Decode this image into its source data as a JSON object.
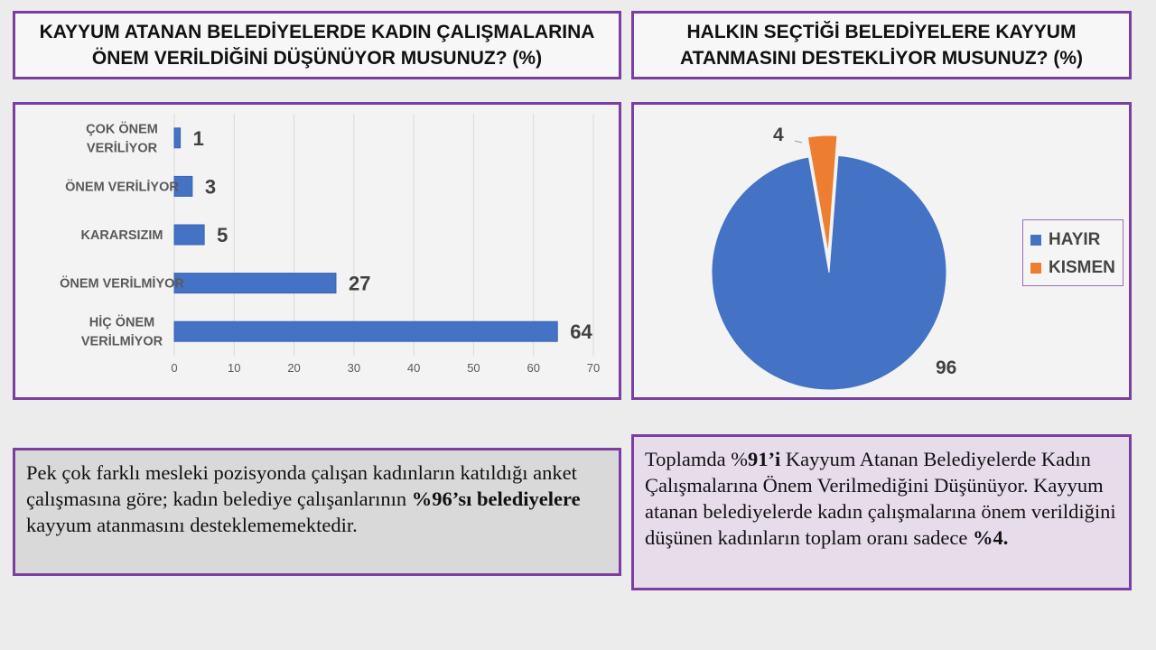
{
  "left_title": {
    "line1": "KAYYUM ATANAN BELEDİYELERDE KADIN ÇALIŞMALARINA",
    "line2": "ÖNEM VERİLDİĞİNİ DÜŞÜNÜYOR MUSUNUZ? (%)"
  },
  "right_title": {
    "line1": "HALKIN SEÇTİĞİ BELEDİYELERE KAYYUM",
    "line2": "ATANMASINI DESTEKLİYOR MUSUNUZ? (%)"
  },
  "chart_data": [
    {
      "type": "bar",
      "orientation": "horizontal",
      "categories": [
        [
          "ÇOK ÖNEM",
          "VERİLİYOR"
        ],
        [
          "ÖNEM VERİLİYOR"
        ],
        [
          "KARARSIZIM"
        ],
        [
          "ÖNEM VERİLMİYOR"
        ],
        [
          "HİÇ ÖNEM",
          "VERİLMİYOR"
        ]
      ],
      "values": [
        1,
        3,
        5,
        27,
        64
      ],
      "xlim": [
        0,
        70
      ],
      "xticks": [
        0,
        10,
        20,
        30,
        40,
        50,
        60,
        70
      ],
      "grid": true,
      "color": "#4472c4"
    },
    {
      "type": "pie",
      "labels": [
        "HAYIR",
        "KISMEN"
      ],
      "values": [
        96,
        4
      ],
      "colors": [
        "#4472c4",
        "#ed7d31"
      ],
      "legend_position": "right"
    }
  ],
  "notes": {
    "left": {
      "p1": "Pek çok farklı mesleki pozisyonda çalışan kadınların katıldığı anket çalışmasına göre; kadın belediye çalışanlarının ",
      "bold": "%96’sı belediyelere",
      "p2": " kayyum atanmasını desteklememektedir."
    },
    "right": {
      "p1": "Toplamda %",
      "bold1": "91’i",
      "p2": " Kayyum Atanan Belediyelerde Kadın Çalışmalarına Önem Verilmediğini Düşünüyor. Kayyum atanan belediyelerde kadın çalışmalarına önem verildiğini düşünen kadınların toplam oranı sadece ",
      "bold2": "%4."
    }
  }
}
